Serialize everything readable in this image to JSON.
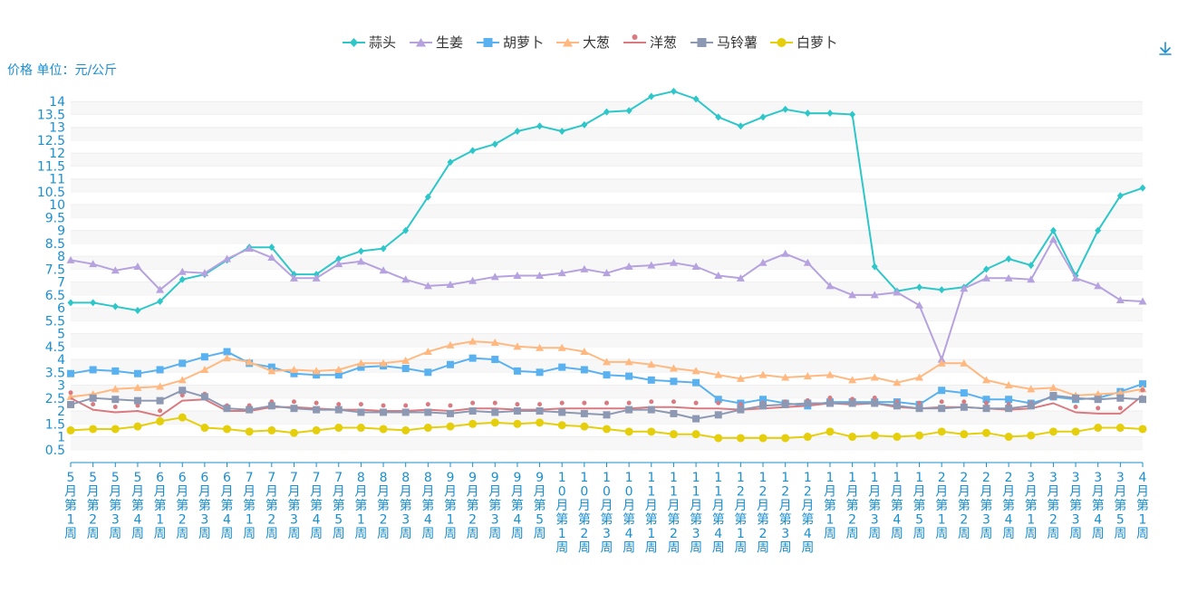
{
  "unit_label": "价格 单位：元/公斤",
  "download_icon": "download-icon",
  "chart_data": {
    "type": "line",
    "title": "",
    "xlabel": "",
    "ylabel": "价格 单位：元/公斤",
    "ylim": [
      0,
      14.5
    ],
    "yticks": [
      0.5,
      1,
      1.5,
      2,
      2.5,
      3,
      3.5,
      4,
      4.5,
      5,
      5.5,
      6,
      6.5,
      7,
      7.5,
      8,
      8.5,
      9,
      9.5,
      10,
      10.5,
      11,
      11.5,
      12,
      12.5,
      13,
      13.5,
      14
    ],
    "legend_position": "top-center",
    "grid": true,
    "categories": [
      "5月第1周",
      "5月第2周",
      "5月第3周",
      "5月第4周",
      "6月第1周",
      "6月第2周",
      "6月第3周",
      "6月第4周",
      "7月第1周",
      "7月第2周",
      "7月第3周",
      "7月第4周",
      "7月第5周",
      "8月第1周",
      "8月第2周",
      "8月第3周",
      "8月第4周",
      "9月第1周",
      "9月第2周",
      "9月第3周",
      "9月第4周",
      "9月第5周",
      "10月第1周",
      "10月第2周",
      "10月第3周",
      "10月第4周",
      "11月第1周",
      "11月第2周",
      "11月第3周",
      "11月第4周",
      "12月第1周",
      "12月第2周",
      "12月第3周",
      "12月第4周",
      "1月第1周",
      "1月第2周",
      "1月第3周",
      "1月第4周",
      "1月第5周",
      "2月第1周",
      "2月第2周",
      "2月第3周",
      "2月第4周",
      "3月第1周",
      "3月第2周",
      "3月第3周",
      "3月第4周",
      "3月第5周",
      "4月第1周"
    ],
    "series": [
      {
        "name": "蒜头",
        "color": "#2ec7c9",
        "symbol": "diamond",
        "values": [
          6.2,
          6.2,
          6.05,
          5.9,
          6.25,
          7.1,
          7.3,
          7.85,
          8.35,
          8.35,
          7.3,
          7.3,
          7.9,
          8.2,
          8.3,
          9,
          10.3,
          11.65,
          12.1,
          12.35,
          12.85,
          13.05,
          12.85,
          13.1,
          13.6,
          13.65,
          14.2,
          14.4,
          14.1,
          13.4,
          13.05,
          13.4,
          13.7,
          13.55,
          13.55,
          13.5,
          7.6,
          6.65,
          6.8,
          6.7,
          6.8,
          7.5,
          7.9,
          7.65,
          9.0,
          7.25,
          9.0,
          10.35,
          10.65
        ]
      },
      {
        "name": "生姜",
        "color": "#b6a2de",
        "symbol": "triangle",
        "values": [
          7.85,
          7.7,
          7.45,
          7.6,
          6.7,
          7.4,
          7.35,
          7.9,
          8.3,
          7.95,
          7.15,
          7.15,
          7.7,
          7.8,
          7.45,
          7.1,
          6.85,
          6.9,
          7.05,
          7.2,
          7.25,
          7.25,
          7.35,
          7.5,
          7.35,
          7.6,
          7.65,
          7.75,
          7.6,
          7.25,
          7.15,
          7.75,
          8.1,
          7.75,
          6.85,
          6.5,
          6.5,
          6.6,
          6.1,
          4.0,
          6.75,
          7.15,
          7.15,
          7.1,
          8.65,
          7.15,
          6.85,
          6.3,
          6.25
        ]
      },
      {
        "name": "胡萝卜",
        "color": "#5ab1ef",
        "symbol": "square",
        "values": [
          3.45,
          3.6,
          3.55,
          3.45,
          3.6,
          3.85,
          4.1,
          4.3,
          3.85,
          3.7,
          3.45,
          3.4,
          3.4,
          3.7,
          3.75,
          3.65,
          3.5,
          3.8,
          4.05,
          4.0,
          3.55,
          3.5,
          3.7,
          3.6,
          3.4,
          3.35,
          3.2,
          3.15,
          3.1,
          2.45,
          2.3,
          2.45,
          2.3,
          2.2,
          2.35,
          2.35,
          2.35,
          2.35,
          2.25,
          2.8,
          2.7,
          2.45,
          2.45,
          2.3,
          2.55,
          2.45,
          2.5,
          2.75,
          3.05
        ]
      },
      {
        "name": "大葱",
        "color": "#ffb980",
        "symbol": "triangle",
        "values": [
          2.55,
          2.65,
          2.85,
          2.9,
          2.95,
          3.2,
          3.6,
          4.05,
          3.9,
          3.55,
          3.6,
          3.55,
          3.6,
          3.85,
          3.85,
          3.95,
          4.3,
          4.55,
          4.7,
          4.65,
          4.5,
          4.45,
          4.45,
          4.3,
          3.9,
          3.9,
          3.8,
          3.65,
          3.55,
          3.4,
          3.25,
          3.4,
          3.3,
          3.35,
          3.4,
          3.2,
          3.3,
          3.1,
          3.3,
          3.85,
          3.85,
          3.2,
          3.0,
          2.85,
          2.9,
          2.6,
          2.65,
          2.7,
          2.85
        ]
      },
      {
        "name": "洋葱",
        "color": "#d87a80",
        "symbol": "pin",
        "values": [
          2.5,
          2.05,
          1.95,
          2.0,
          1.8,
          2.4,
          2.45,
          2.0,
          2.0,
          2.15,
          2.15,
          2.1,
          2.05,
          2.05,
          2.0,
          2.0,
          2.05,
          2.0,
          2.1,
          2.1,
          2.05,
          2.05,
          2.1,
          2.1,
          2.1,
          2.1,
          2.15,
          2.15,
          2.1,
          2.1,
          2.05,
          2.1,
          2.15,
          2.2,
          2.3,
          2.25,
          2.3,
          2.15,
          2.1,
          2.15,
          2.15,
          2.1,
          2.05,
          2.1,
          2.3,
          1.95,
          1.9,
          1.9,
          2.6
        ]
      },
      {
        "name": "马铃薯",
        "color": "#8d98b3",
        "symbol": "square",
        "values": [
          2.25,
          2.5,
          2.45,
          2.4,
          2.4,
          2.8,
          2.55,
          2.1,
          2.05,
          2.2,
          2.1,
          2.05,
          2.05,
          1.95,
          1.95,
          1.95,
          1.95,
          1.9,
          2.0,
          1.95,
          2.0,
          2.0,
          1.95,
          1.9,
          1.85,
          2.05,
          2.05,
          1.9,
          1.7,
          1.85,
          2.05,
          2.2,
          2.25,
          2.3,
          2.3,
          2.3,
          2.3,
          2.2,
          2.1,
          2.1,
          2.15,
          2.1,
          2.1,
          2.2,
          2.6,
          2.5,
          2.45,
          2.5,
          2.45
        ]
      },
      {
        "name": "白萝卜",
        "color": "#e5cf0d",
        "symbol": "circle",
        "values": [
          1.25,
          1.3,
          1.3,
          1.4,
          1.6,
          1.75,
          1.35,
          1.3,
          1.2,
          1.25,
          1.15,
          1.25,
          1.35,
          1.35,
          1.3,
          1.25,
          1.35,
          1.4,
          1.5,
          1.55,
          1.5,
          1.55,
          1.45,
          1.4,
          1.3,
          1.2,
          1.2,
          1.1,
          1.1,
          0.95,
          0.95,
          0.95,
          0.95,
          1.0,
          1.2,
          1.0,
          1.05,
          1.0,
          1.05,
          1.2,
          1.1,
          1.15,
          1.0,
          1.05,
          1.2,
          1.2,
          1.35,
          1.35,
          1.3
        ]
      }
    ]
  }
}
